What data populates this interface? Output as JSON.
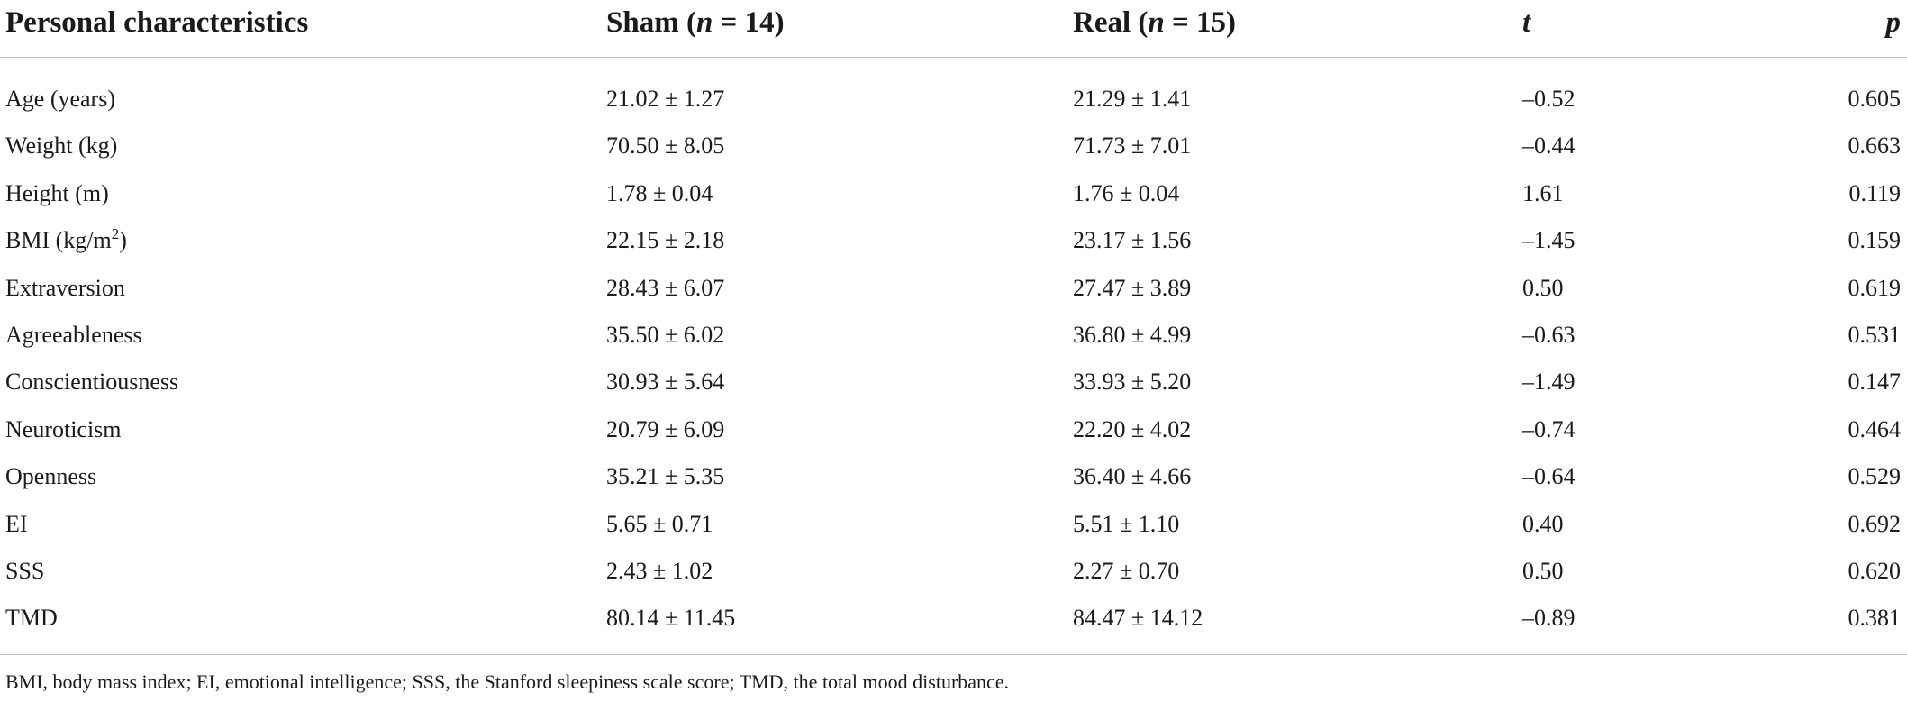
{
  "table": {
    "headers": {
      "characteristics": "Personal characteristics",
      "sham_prefix": "Sham (",
      "sham_n": "n",
      "sham_suffix": " = 14)",
      "real_prefix": "Real (",
      "real_n": "n",
      "real_suffix": " = 15)",
      "t": "t",
      "p": "p"
    },
    "rows": [
      {
        "name": "Age (years)",
        "sham": "21.02 ± 1.27",
        "real": "21.29 ± 1.41",
        "t": "–0.52",
        "p": "0.605"
      },
      {
        "name": "Weight (kg)",
        "sham": "70.50 ± 8.05",
        "real": "71.73 ± 7.01",
        "t": "–0.44",
        "p": "0.663"
      },
      {
        "name": "Height (m)",
        "sham": "1.78 ± 0.04",
        "real": "1.76 ± 0.04",
        "t": "1.61",
        "p": "0.119"
      },
      {
        "name": "BMI (kg/m",
        "name_sup": "2",
        "name_end": ")",
        "sham": "22.15 ± 2.18",
        "real": "23.17 ± 1.56",
        "t": "–1.45",
        "p": "0.159"
      },
      {
        "name": "Extraversion",
        "sham": "28.43 ± 6.07",
        "real": "27.47 ± 3.89",
        "t": "0.50",
        "p": "0.619"
      },
      {
        "name": "Agreeableness",
        "sham": "35.50 ± 6.02",
        "real": "36.80 ± 4.99",
        "t": "–0.63",
        "p": "0.531"
      },
      {
        "name": "Conscientiousness",
        "sham": "30.93 ± 5.64",
        "real": "33.93 ± 5.20",
        "t": "–1.49",
        "p": "0.147"
      },
      {
        "name": "Neuroticism",
        "sham": "20.79 ± 6.09",
        "real": "22.20 ± 4.02",
        "t": "–0.74",
        "p": "0.464"
      },
      {
        "name": "Openness",
        "sham": "35.21 ± 5.35",
        "real": "36.40 ± 4.66",
        "t": "–0.64",
        "p": "0.529"
      },
      {
        "name": "EI",
        "sham": "5.65 ± 0.71",
        "real": "5.51 ± 1.10",
        "t": "0.40",
        "p": "0.692"
      },
      {
        "name": "SSS",
        "sham": "2.43 ± 1.02",
        "real": "2.27 ± 0.70",
        "t": "0.50",
        "p": "0.620"
      },
      {
        "name": "TMD",
        "sham": "80.14 ± 11.45",
        "real": "84.47 ± 14.12",
        "t": "–0.89",
        "p": "0.381"
      }
    ],
    "footnote": "BMI, body mass index; EI, emotional intelligence; SSS, the Stanford sleepiness scale score; TMD, the total mood disturbance."
  }
}
